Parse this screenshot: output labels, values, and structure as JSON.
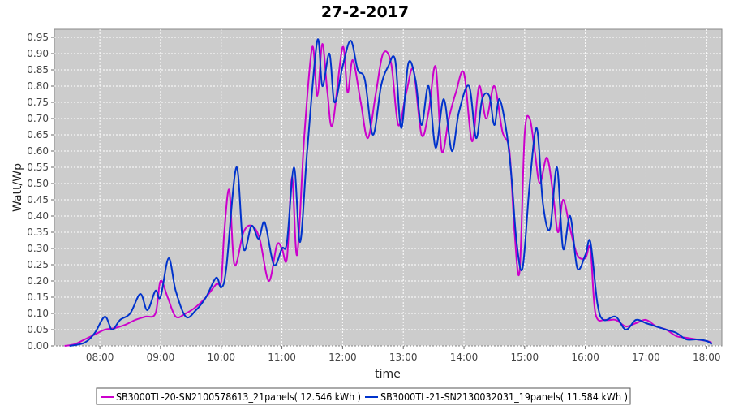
{
  "chart_data": {
    "type": "line",
    "title": "27-2-2017",
    "xlabel": "time",
    "ylabel": "Watt/Wp",
    "xlim": [
      "07:15",
      "18:15"
    ],
    "ylim": [
      0,
      0.975
    ],
    "x_ticks": [
      "08:00",
      "09:00",
      "10:00",
      "11:00",
      "12:00",
      "13:00",
      "14:00",
      "15:00",
      "16:00",
      "17:00",
      "18:00"
    ],
    "y_ticks": [
      "0.00",
      "0.05",
      "0.10",
      "0.15",
      "0.20",
      "0.25",
      "0.30",
      "0.35",
      "0.40",
      "0.45",
      "0.50",
      "0.55",
      "0.60",
      "0.65",
      "0.70",
      "0.75",
      "0.80",
      "0.85",
      "0.90",
      "0.95"
    ],
    "grid": true,
    "legend_position": "bottom",
    "series": [
      {
        "name": "SB3000TL-20-SN2100578613_21panels( 12.546 kWh )",
        "color": "#cc00cc",
        "points": [
          [
            "07:25",
            0.0
          ],
          [
            "07:35",
            0.005
          ],
          [
            "07:45",
            0.02
          ],
          [
            "07:55",
            0.035
          ],
          [
            "08:05",
            0.05
          ],
          [
            "08:15",
            0.055
          ],
          [
            "08:25",
            0.065
          ],
          [
            "08:35",
            0.08
          ],
          [
            "08:45",
            0.09
          ],
          [
            "08:55",
            0.1
          ],
          [
            "09:00",
            0.2
          ],
          [
            "09:07",
            0.15
          ],
          [
            "09:15",
            0.09
          ],
          [
            "09:25",
            0.1
          ],
          [
            "09:35",
            0.12
          ],
          [
            "09:45",
            0.15
          ],
          [
            "09:55",
            0.19
          ],
          [
            "10:00",
            0.2
          ],
          [
            "10:03",
            0.35
          ],
          [
            "10:08",
            0.48
          ],
          [
            "10:13",
            0.25
          ],
          [
            "10:22",
            0.35
          ],
          [
            "10:30",
            0.37
          ],
          [
            "10:38",
            0.33
          ],
          [
            "10:47",
            0.2
          ],
          [
            "10:55",
            0.31
          ],
          [
            "11:00",
            0.3
          ],
          [
            "11:05",
            0.27
          ],
          [
            "11:10",
            0.52
          ],
          [
            "11:15",
            0.28
          ],
          [
            "11:22",
            0.64
          ],
          [
            "11:30",
            0.92
          ],
          [
            "11:35",
            0.77
          ],
          [
            "11:40",
            0.93
          ],
          [
            "11:45",
            0.78
          ],
          [
            "11:50",
            0.68
          ],
          [
            "12:00",
            0.92
          ],
          [
            "12:05",
            0.78
          ],
          [
            "12:10",
            0.88
          ],
          [
            "12:18",
            0.75
          ],
          [
            "12:25",
            0.64
          ],
          [
            "12:33",
            0.78
          ],
          [
            "12:40",
            0.9
          ],
          [
            "12:48",
            0.87
          ],
          [
            "12:55",
            0.68
          ],
          [
            "13:03",
            0.78
          ],
          [
            "13:10",
            0.85
          ],
          [
            "13:18",
            0.65
          ],
          [
            "13:25",
            0.72
          ],
          [
            "13:32",
            0.86
          ],
          [
            "13:38",
            0.6
          ],
          [
            "13:45",
            0.7
          ],
          [
            "13:52",
            0.78
          ],
          [
            "14:00",
            0.84
          ],
          [
            "14:08",
            0.63
          ],
          [
            "14:15",
            0.8
          ],
          [
            "14:22",
            0.7
          ],
          [
            "14:30",
            0.8
          ],
          [
            "14:38",
            0.66
          ],
          [
            "14:45",
            0.6
          ],
          [
            "14:50",
            0.35
          ],
          [
            "14:55",
            0.23
          ],
          [
            "15:00",
            0.65
          ],
          [
            "15:05",
            0.7
          ],
          [
            "15:10",
            0.6
          ],
          [
            "15:15",
            0.5
          ],
          [
            "15:22",
            0.58
          ],
          [
            "15:28",
            0.47
          ],
          [
            "15:33",
            0.35
          ],
          [
            "15:38",
            0.45
          ],
          [
            "15:45",
            0.36
          ],
          [
            "15:52",
            0.28
          ],
          [
            "16:00",
            0.27
          ],
          [
            "16:05",
            0.3
          ],
          [
            "16:10",
            0.1
          ],
          [
            "16:20",
            0.08
          ],
          [
            "16:30",
            0.08
          ],
          [
            "16:40",
            0.06
          ],
          [
            "16:50",
            0.07
          ],
          [
            "17:00",
            0.08
          ],
          [
            "17:10",
            0.06
          ],
          [
            "17:20",
            0.05
          ],
          [
            "17:30",
            0.03
          ],
          [
            "17:40",
            0.025
          ],
          [
            "17:50",
            0.02
          ],
          [
            "18:00",
            0.015
          ],
          [
            "18:05",
            0.01
          ]
        ]
      },
      {
        "name": "SB3000TL-21-SN2130032031_19panels( 11.584 kWh )",
        "color": "#0033cc",
        "points": [
          [
            "07:30",
            0.0
          ],
          [
            "07:45",
            0.01
          ],
          [
            "07:55",
            0.04
          ],
          [
            "08:05",
            0.09
          ],
          [
            "08:12",
            0.05
          ],
          [
            "08:20",
            0.08
          ],
          [
            "08:30",
            0.1
          ],
          [
            "08:40",
            0.16
          ],
          [
            "08:47",
            0.11
          ],
          [
            "08:55",
            0.17
          ],
          [
            "09:00",
            0.15
          ],
          [
            "09:08",
            0.27
          ],
          [
            "09:15",
            0.17
          ],
          [
            "09:25",
            0.09
          ],
          [
            "09:35",
            0.11
          ],
          [
            "09:45",
            0.15
          ],
          [
            "09:55",
            0.21
          ],
          [
            "10:00",
            0.18
          ],
          [
            "10:05",
            0.24
          ],
          [
            "10:15",
            0.55
          ],
          [
            "10:22",
            0.3
          ],
          [
            "10:30",
            0.37
          ],
          [
            "10:37",
            0.33
          ],
          [
            "10:43",
            0.38
          ],
          [
            "10:52",
            0.25
          ],
          [
            "11:00",
            0.3
          ],
          [
            "11:05",
            0.32
          ],
          [
            "11:12",
            0.55
          ],
          [
            "11:18",
            0.32
          ],
          [
            "11:25",
            0.6
          ],
          [
            "11:35",
            0.94
          ],
          [
            "11:40",
            0.8
          ],
          [
            "11:47",
            0.9
          ],
          [
            "11:52",
            0.75
          ],
          [
            "12:00",
            0.86
          ],
          [
            "12:08",
            0.94
          ],
          [
            "12:15",
            0.85
          ],
          [
            "12:22",
            0.82
          ],
          [
            "12:30",
            0.65
          ],
          [
            "12:38",
            0.8
          ],
          [
            "12:45",
            0.86
          ],
          [
            "12:52",
            0.88
          ],
          [
            "12:58",
            0.67
          ],
          [
            "13:05",
            0.87
          ],
          [
            "13:12",
            0.82
          ],
          [
            "13:18",
            0.68
          ],
          [
            "13:25",
            0.8
          ],
          [
            "13:32",
            0.61
          ],
          [
            "13:40",
            0.76
          ],
          [
            "13:48",
            0.6
          ],
          [
            "13:55",
            0.72
          ],
          [
            "14:05",
            0.8
          ],
          [
            "14:12",
            0.64
          ],
          [
            "14:18",
            0.76
          ],
          [
            "14:25",
            0.77
          ],
          [
            "14:30",
            0.68
          ],
          [
            "14:35",
            0.76
          ],
          [
            "14:42",
            0.66
          ],
          [
            "14:47",
            0.52
          ],
          [
            "14:52",
            0.32
          ],
          [
            "14:58",
            0.24
          ],
          [
            "15:05",
            0.5
          ],
          [
            "15:12",
            0.67
          ],
          [
            "15:18",
            0.44
          ],
          [
            "15:25",
            0.36
          ],
          [
            "15:32",
            0.55
          ],
          [
            "15:38",
            0.3
          ],
          [
            "15:45",
            0.4
          ],
          [
            "15:52",
            0.24
          ],
          [
            "16:00",
            0.28
          ],
          [
            "16:05",
            0.32
          ],
          [
            "16:12",
            0.13
          ],
          [
            "16:18",
            0.08
          ],
          [
            "16:30",
            0.09
          ],
          [
            "16:40",
            0.05
          ],
          [
            "16:50",
            0.08
          ],
          [
            "17:00",
            0.07
          ],
          [
            "17:10",
            0.06
          ],
          [
            "17:20",
            0.05
          ],
          [
            "17:30",
            0.04
          ],
          [
            "17:40",
            0.02
          ],
          [
            "17:50",
            0.02
          ],
          [
            "18:00",
            0.015
          ],
          [
            "18:05",
            0.005
          ]
        ]
      }
    ]
  }
}
